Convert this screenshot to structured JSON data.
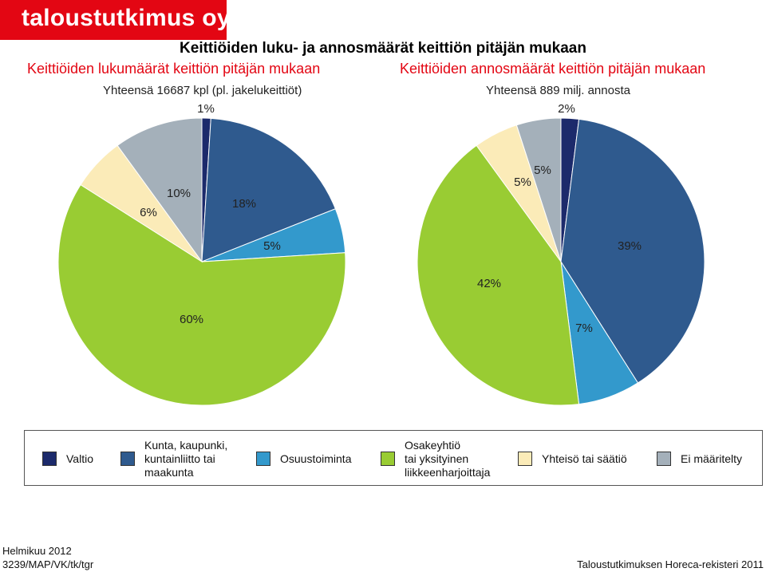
{
  "brand": {
    "text": "taloustutkimus oy",
    "color": "#e30613"
  },
  "title": "Keittiöiden luku- ja annosmäärät keittiön pitäjän mukaan",
  "chart_data": [
    {
      "type": "pie",
      "title": "Keittiöiden lukumäärät keittiön pitäjän mukaan",
      "subtitle": "Yhteensä 16687 kpl (pl. jakelukeittiöt)",
      "categories": [
        "Valtio",
        "Kunta, kaupunki, kuntainliitto tai maakunta",
        "Osuustoiminta",
        "Osakeyhtiö tai yksityinen liikkeenharjoittaja",
        "Yhteisö tai säätiö",
        "Ei määritelty"
      ],
      "values": [
        1,
        18,
        5,
        60,
        6,
        10
      ],
      "labels": [
        "1%",
        "18%",
        "5%",
        "60%",
        "6%",
        "10%"
      ]
    },
    {
      "type": "pie",
      "title": "Keittiöiden annosmäärät keittiön pitäjän mukaan",
      "subtitle": "Yhteensä 889 milj. annosta",
      "categories": [
        "Valtio",
        "Kunta, kaupunki, kuntainliitto tai maakunta",
        "Osuustoiminta",
        "Osakeyhtiö tai yksityinen liikkeenharjoittaja",
        "Yhteisö tai säätiö",
        "Ei määritelty"
      ],
      "values": [
        2,
        39,
        7,
        42,
        5,
        5
      ],
      "labels": [
        "2%",
        "39%",
        "7%",
        "42%",
        "5%",
        "5%"
      ]
    }
  ],
  "legend": {
    "placement": "bottom",
    "items": [
      {
        "label": "Valtio",
        "color": "#1c2a6b"
      },
      {
        "label": "Kunta, kaupunki,\nkuntainliitto tai\nmaakunta",
        "color": "#2f5a8e"
      },
      {
        "label": "Osuustoiminta",
        "color": "#3399cc"
      },
      {
        "label": "Osakeyhtiö\ntai yksityinen\nliikkeenharjoittaja",
        "color": "#99cc33"
      },
      {
        "label": "Yhteisö tai säätiö",
        "color": "#fbebb8"
      },
      {
        "label": "Ei määritelty",
        "color": "#a4b0ba"
      }
    ]
  },
  "footer": {
    "date": "Helmikuu 2012",
    "code": "3239/MAP/VK/tk/tgr",
    "source": "Taloustutkimuksen Horeca-rekisteri 2011"
  }
}
